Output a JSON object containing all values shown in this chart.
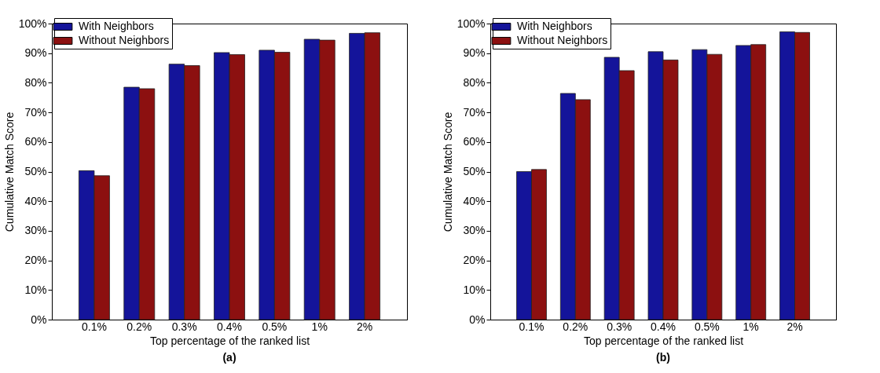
{
  "chart_data": [
    {
      "type": "bar",
      "title": "(a)",
      "xlabel": "Top percentage of the ranked list",
      "ylabel": "Cumulative Match Score",
      "categories": [
        "0.1%",
        "0.2%",
        "0.3%",
        "0.4%",
        "0.5%",
        "1%",
        "2%"
      ],
      "series": [
        {
          "name": "With Neighbors",
          "color": "#14149a",
          "values": [
            50.3,
            78.5,
            86.3,
            90.2,
            91.0,
            94.7,
            96.7
          ]
        },
        {
          "name": "Without Neighbors",
          "color": "#8c1010",
          "values": [
            48.6,
            78.0,
            85.8,
            89.5,
            90.3,
            94.4,
            96.9
          ]
        }
      ],
      "ylim": [
        0,
        100
      ],
      "yticks": [
        {
          "value": 0,
          "label": "0%"
        },
        {
          "value": 10,
          "label": "10%"
        },
        {
          "value": 20,
          "label": "20%"
        },
        {
          "value": 30,
          "label": "30%"
        },
        {
          "value": 40,
          "label": "40%"
        },
        {
          "value": 50,
          "label": "50%"
        },
        {
          "value": 60,
          "label": "60%"
        },
        {
          "value": 70,
          "label": "70%"
        },
        {
          "value": 80,
          "label": "80%"
        },
        {
          "value": 90,
          "label": "90%"
        },
        {
          "value": 100,
          "label": "100%"
        }
      ],
      "grid": false,
      "legend": "top left"
    },
    {
      "type": "bar",
      "title": "(b)",
      "xlabel": "Top percentage of the ranked list",
      "ylabel": "Cumulative Match Score",
      "categories": [
        "0.1%",
        "0.2%",
        "0.3%",
        "0.4%",
        "0.5%",
        "1%",
        "2%"
      ],
      "series": [
        {
          "name": "With Neighbors",
          "color": "#14149a",
          "values": [
            50.0,
            76.4,
            88.6,
            90.5,
            91.2,
            92.6,
            97.2
          ]
        },
        {
          "name": "Without Neighbors",
          "color": "#8c1010",
          "values": [
            50.7,
            74.3,
            84.1,
            87.7,
            89.6,
            92.9,
            97.0
          ]
        }
      ],
      "ylim": [
        0,
        100
      ],
      "yticks": [
        {
          "value": 0,
          "label": "0%"
        },
        {
          "value": 10,
          "label": "10%"
        },
        {
          "value": 20,
          "label": "20%"
        },
        {
          "value": 30,
          "label": "30%"
        },
        {
          "value": 40,
          "label": "40%"
        },
        {
          "value": 50,
          "label": "50%"
        },
        {
          "value": 60,
          "label": "60%"
        },
        {
          "value": 70,
          "label": "70%"
        },
        {
          "value": 80,
          "label": "80%"
        },
        {
          "value": 90,
          "label": "90%"
        },
        {
          "value": 100,
          "label": "100%"
        }
      ],
      "grid": false,
      "legend": "top left"
    }
  ]
}
